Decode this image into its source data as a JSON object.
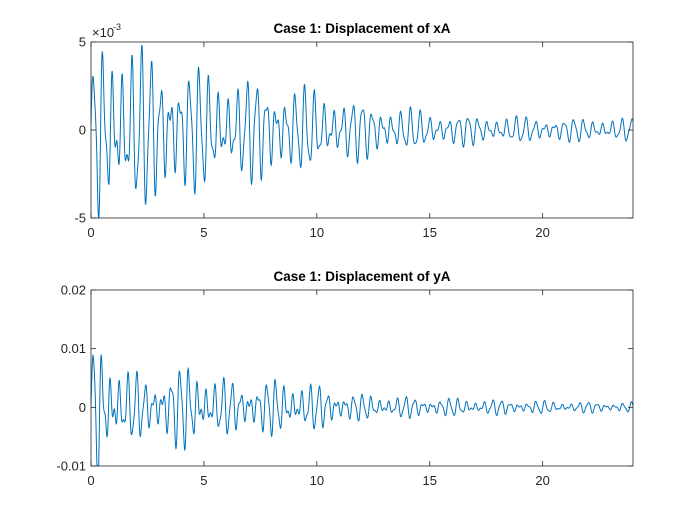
{
  "chart_data": [
    {
      "type": "line",
      "title": "Case 1: Displacement of xA",
      "xlabel": "",
      "ylabel": "",
      "xlim": [
        0,
        24
      ],
      "ylim": [
        -5,
        5
      ],
      "y_exponent": {
        "base": "×10",
        "power": "-3"
      },
      "x_ticks": [
        "0",
        "5",
        "10",
        "15",
        "20"
      ],
      "y_ticks": [
        "-5",
        "0",
        "5"
      ],
      "grid": false,
      "color": "#0072BD",
      "envelope": {
        "t": [
          0,
          0.3,
          0.6,
          1.2,
          2.5,
          4,
          6,
          8,
          10,
          12,
          15,
          18,
          21,
          24
        ],
        "amp": [
          2.5,
          4.9,
          5.0,
          4.8,
          4.0,
          3.5,
          2.7,
          2.6,
          2.0,
          1.5,
          0.9,
          0.7,
          0.6,
          0.6
        ]
      },
      "signal": {
        "freq_hz": 2.35,
        "beat_freq_hz": 0.42,
        "beat_depth": 0.3
      }
    },
    {
      "type": "line",
      "title": "Case 1: Displacement of yA",
      "xlabel": "",
      "ylabel": "",
      "xlim": [
        0,
        24
      ],
      "ylim": [
        -0.01,
        0.02
      ],
      "x_ticks": [
        "0",
        "5",
        "10",
        "15",
        "20"
      ],
      "y_ticks": [
        "-0.01",
        "0",
        "0.01",
        "0.02"
      ],
      "grid": false,
      "color": "#0072BD",
      "envelope": {
        "t": [
          0,
          0.2,
          0.4,
          0.8,
          1.5,
          2.5,
          3.5,
          4.5,
          5.5,
          7,
          8.5,
          10,
          12,
          15,
          18,
          21,
          24
        ],
        "amp": [
          0.004,
          0.017,
          0.011,
          0.009,
          0.006,
          0.0045,
          0.006,
          0.007,
          0.0045,
          0.004,
          0.0045,
          0.0035,
          0.002,
          0.0015,
          0.0012,
          0.0009,
          0.0008
        ]
      },
      "signal": {
        "freq_hz": 2.6,
        "beat_freq_hz": 0.5,
        "beat_depth": 0.35
      }
    }
  ]
}
